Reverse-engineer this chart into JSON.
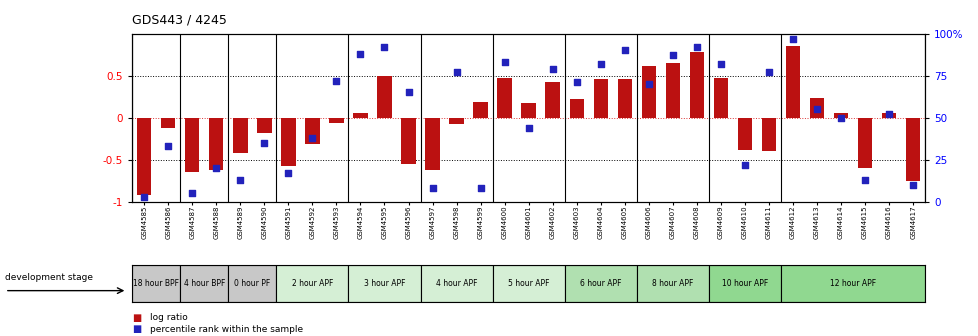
{
  "title": "GDS443 / 4245",
  "samples": [
    "GSM4585",
    "GSM4586",
    "GSM4587",
    "GSM4588",
    "GSM4589",
    "GSM4590",
    "GSM4591",
    "GSM4592",
    "GSM4593",
    "GSM4594",
    "GSM4595",
    "GSM4596",
    "GSM4597",
    "GSM4598",
    "GSM4599",
    "GSM4600",
    "GSM4601",
    "GSM4602",
    "GSM4603",
    "GSM4604",
    "GSM4605",
    "GSM4606",
    "GSM4607",
    "GSM4608",
    "GSM4609",
    "GSM4610",
    "GSM4611",
    "GSM4612",
    "GSM4613",
    "GSM4614",
    "GSM4615",
    "GSM4616",
    "GSM4617"
  ],
  "log_ratios": [
    -0.92,
    -0.12,
    -0.65,
    -0.62,
    -0.42,
    -0.18,
    -0.58,
    -0.32,
    -0.07,
    0.05,
    0.5,
    -0.55,
    -0.62,
    -0.08,
    0.18,
    0.47,
    0.17,
    0.42,
    0.22,
    0.46,
    0.46,
    0.62,
    0.65,
    0.78,
    0.47,
    -0.38,
    -0.4,
    0.85,
    0.23,
    0.05,
    -0.6,
    0.06,
    -0.75
  ],
  "percentile_ranks": [
    3,
    33,
    5,
    20,
    13,
    35,
    17,
    38,
    72,
    88,
    92,
    65,
    8,
    77,
    8,
    83,
    44,
    79,
    71,
    82,
    90,
    70,
    87,
    92,
    82,
    22,
    77,
    97,
    55,
    50,
    13,
    52,
    10
  ],
  "stage_groups": [
    {
      "label": "18 hour BPF",
      "start": 0,
      "end": 2,
      "color": "#c8c8c8"
    },
    {
      "label": "4 hour BPF",
      "start": 2,
      "end": 4,
      "color": "#c8c8c8"
    },
    {
      "label": "0 hour PF",
      "start": 4,
      "end": 6,
      "color": "#c8c8c8"
    },
    {
      "label": "2 hour APF",
      "start": 6,
      "end": 9,
      "color": "#d5efd5"
    },
    {
      "label": "3 hour APF",
      "start": 9,
      "end": 12,
      "color": "#d5efd5"
    },
    {
      "label": "4 hour APF",
      "start": 12,
      "end": 15,
      "color": "#d5efd5"
    },
    {
      "label": "5 hour APF",
      "start": 15,
      "end": 18,
      "color": "#d5efd5"
    },
    {
      "label": "6 hour APF",
      "start": 18,
      "end": 21,
      "color": "#b0e0b0"
    },
    {
      "label": "8 hour APF",
      "start": 21,
      "end": 24,
      "color": "#b0e0b0"
    },
    {
      "label": "10 hour APF",
      "start": 24,
      "end": 27,
      "color": "#90d890"
    },
    {
      "label": "12 hour APF",
      "start": 27,
      "end": 33,
      "color": "#90d890"
    }
  ],
  "bar_color": "#bb1111",
  "dot_color": "#2222bb",
  "ylim": [
    -1,
    1
  ],
  "yticks": [
    -1,
    -0.5,
    0,
    0.5
  ],
  "y2ticks": [
    0,
    25,
    50,
    75,
    100
  ],
  "dotted_lines": [
    -0.5,
    0,
    0.5
  ],
  "bg_color": "#ffffff"
}
